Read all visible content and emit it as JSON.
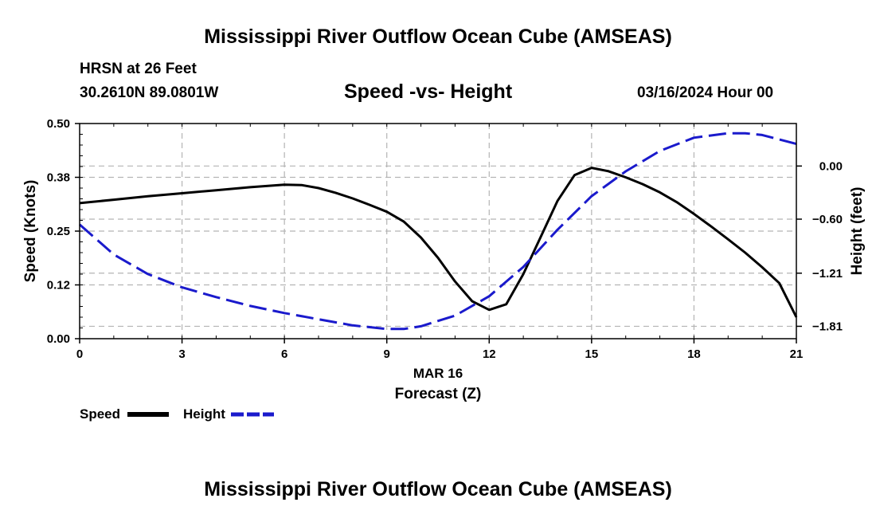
{
  "header": {
    "title": "Mississippi River Outflow Ocean Cube (AMSEAS)",
    "station": "HRSN at 26 Feet",
    "coords": "30.2610N  89.0801W",
    "subtitle": "Speed -vs- Height",
    "datetime": "03/16/2024 Hour 00"
  },
  "legend": {
    "speed_label": "Speed",
    "height_label": "Height"
  },
  "footer": {
    "title": "Mississippi River Outflow Ocean Cube (AMSEAS)"
  },
  "colors": {
    "speed": "#000000",
    "height": "#1a1acc",
    "grid": "#b4b4b4"
  },
  "chart_data": {
    "type": "line",
    "title": "Speed -vs- Height",
    "xlabel": "Forecast (Z)",
    "xsublabel": "MAR 16",
    "ylabel": "Speed (Knots)",
    "y2label": "Height (feet)",
    "xlim": [
      0,
      21
    ],
    "ylim": [
      0,
      0.5
    ],
    "y2lim": [
      -1.95,
      0.48
    ],
    "x_ticks": [
      "0",
      "3",
      "6",
      "9",
      "12",
      "15",
      "18",
      "21"
    ],
    "y_ticks": [
      {
        "value": 0.0,
        "label": "0.00"
      },
      {
        "value": 0.125,
        "label": "0.12"
      },
      {
        "value": 0.25,
        "label": "0.25"
      },
      {
        "value": 0.375,
        "label": "0.38"
      },
      {
        "value": 0.5,
        "label": "0.50"
      }
    ],
    "y2_ticks": [
      {
        "value": 0.0,
        "label": "0.00"
      },
      {
        "value": -0.6,
        "label": "−0.60"
      },
      {
        "value": -1.21,
        "label": "−1.21"
      },
      {
        "value": -1.81,
        "label": "−1.81"
      }
    ],
    "series": [
      {
        "name": "Speed",
        "axis": "left",
        "style": "solid",
        "x": [
          0,
          1,
          2,
          3,
          4,
          5,
          6,
          6.5,
          7,
          7.5,
          8,
          8.5,
          9,
          9.5,
          10,
          10.5,
          11,
          11.5,
          12,
          12.5,
          13,
          13.5,
          14,
          14.5,
          15,
          15.5,
          16,
          16.5,
          17,
          17.5,
          18,
          18.5,
          19,
          19.5,
          20,
          20.5,
          21
        ],
        "values": [
          0.315,
          0.323,
          0.331,
          0.338,
          0.345,
          0.352,
          0.358,
          0.357,
          0.35,
          0.339,
          0.326,
          0.311,
          0.295,
          0.272,
          0.235,
          0.188,
          0.133,
          0.087,
          0.067,
          0.08,
          0.15,
          0.235,
          0.32,
          0.38,
          0.397,
          0.389,
          0.375,
          0.359,
          0.34,
          0.317,
          0.29,
          0.261,
          0.231,
          0.2,
          0.166,
          0.129,
          0.05
        ]
      },
      {
        "name": "Height",
        "axis": "right",
        "style": "dashed",
        "x": [
          0,
          1,
          2,
          3,
          4,
          5,
          6,
          7,
          8,
          9,
          9.5,
          10,
          11,
          12,
          13,
          14,
          15,
          16,
          17,
          18,
          19,
          19.5,
          20,
          21
        ],
        "values": [
          -0.66,
          -1.0,
          -1.22,
          -1.37,
          -1.48,
          -1.58,
          -1.66,
          -1.73,
          -1.8,
          -1.84,
          -1.84,
          -1.81,
          -1.69,
          -1.47,
          -1.14,
          -0.72,
          -0.34,
          -0.06,
          0.17,
          0.32,
          0.37,
          0.37,
          0.35,
          0.25
        ]
      }
    ]
  }
}
